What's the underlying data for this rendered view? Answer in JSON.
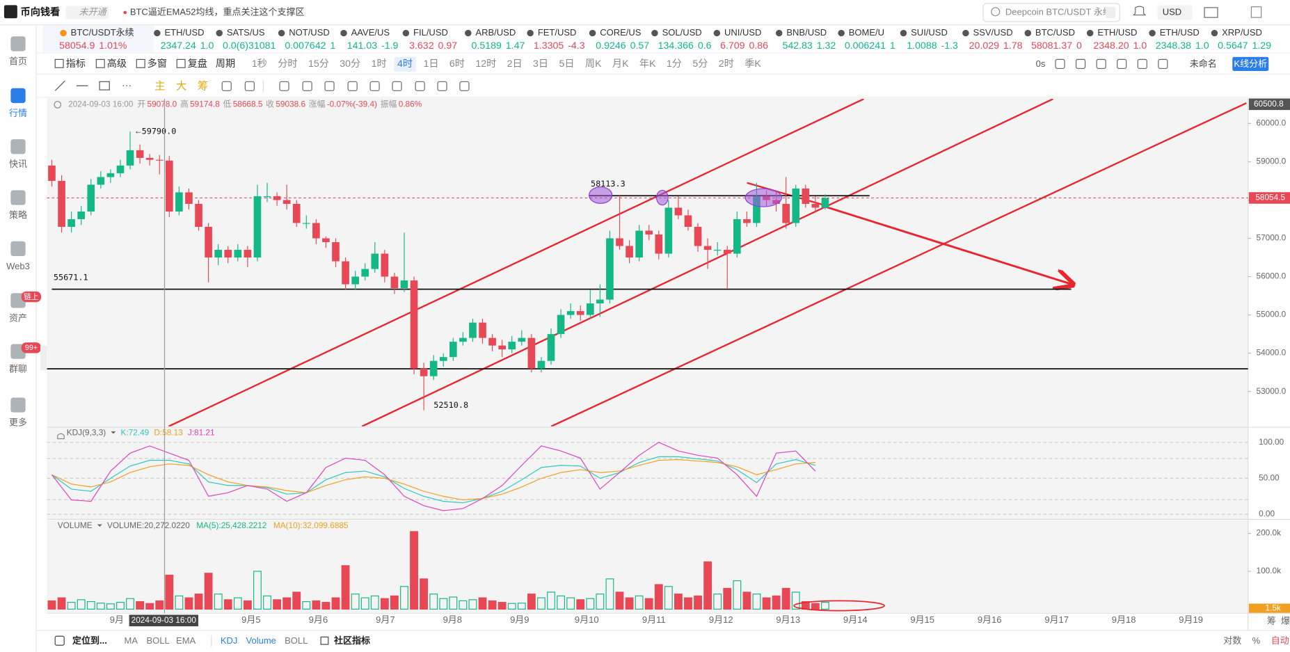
{
  "header": {
    "logo": "币向钱看",
    "badge": "未开通",
    "news": "BTC逼近EMA52均线，重点关注这个支撑区",
    "search": "Deepcoin BTC/USDT 永续",
    "currency": "USD"
  },
  "sidebar": {
    "items": [
      "首页",
      "行情",
      "快讯",
      "策略",
      "Web3",
      "资产",
      "群聊",
      "更多"
    ],
    "active": 1,
    "badges": [
      {
        "text": "链上",
        "item": 5
      },
      {
        "text": "99+",
        "item": 6
      }
    ]
  },
  "tickers": [
    {
      "name": "BTC/USDT永续",
      "price": "58054.9",
      "change": "1.01%",
      "color": "#e84856"
    },
    {
      "name": "ETH/USD",
      "price": "2347.24",
      "change": "1.0",
      "color": "#13b886"
    },
    {
      "name": "SATS/US",
      "price": "0.0(6)31081",
      "change": "",
      "color": "#13b886"
    },
    {
      "name": "NOT/USD",
      "price": "0.007642",
      "change": "1",
      "color": "#13b886"
    },
    {
      "name": "AAVE/US",
      "price": "141.03",
      "change": "-1.9",
      "color": "#13b886"
    },
    {
      "name": "FIL/USD",
      "price": "3.632",
      "change": "0.97",
      "color": "#e84856"
    },
    {
      "name": "ARB/USD",
      "price": "0.5189",
      "change": "1.47",
      "color": "#13b886"
    },
    {
      "name": "FET/USD",
      "price": "1.3305",
      "change": "-4.3",
      "color": "#e84856"
    },
    {
      "name": "CORE/US",
      "price": "0.9246",
      "change": "0.57",
      "color": "#13b886"
    },
    {
      "name": "SOL/USD",
      "price": "134.366",
      "change": "0.6",
      "color": "#13b886"
    },
    {
      "name": "UNI/USD",
      "price": "6.709",
      "change": "0.86",
      "color": "#e84856"
    },
    {
      "name": "BNB/USD",
      "price": "542.83",
      "change": "1.32",
      "color": "#13b886"
    },
    {
      "name": "BOME/U",
      "price": "0.006241",
      "change": "1",
      "color": "#13b886"
    },
    {
      "name": "SUI/USD",
      "price": "1.0088",
      "change": "-1.3",
      "color": "#13b886"
    },
    {
      "name": "SSV/USD",
      "price": "20.029",
      "change": "1.78",
      "color": "#e84856"
    },
    {
      "name": "BTC/USD",
      "price": "58081.37",
      "change": "0",
      "color": "#e84856"
    },
    {
      "name": "ETH/USD",
      "price": "2348.20",
      "change": "1.0",
      "color": "#e84856"
    },
    {
      "name": "ETH/USD",
      "price": "2348.38",
      "change": "1.0",
      "color": "#13b886"
    },
    {
      "name": "XRP/USD",
      "price": "0.5647",
      "change": "1.29",
      "color": "#13b886"
    }
  ],
  "toolbar": {
    "tools": [
      "指标",
      "高级",
      "多窗",
      "复盘",
      "周期"
    ],
    "periods": [
      "1秒",
      "分时",
      "15分",
      "30分",
      "1时",
      "4时",
      "1日",
      "6时",
      "12时",
      "2日",
      "3日",
      "5日",
      "周K",
      "月K",
      "年K",
      "1分",
      "5分",
      "2时",
      "季K"
    ],
    "active_period": 5,
    "right": [
      "0s",
      "未命名",
      "K线分析"
    ]
  },
  "drawing_tools": [
    "主",
    "大",
    "筹"
  ],
  "bottom_bar": {
    "locate": "定位到...",
    "main_indicators": [
      "MA",
      "BOLL",
      "EMA"
    ],
    "sub_indicators": [
      "KDJ",
      "Volume",
      "BOLL"
    ],
    "community": "社区指标",
    "right": [
      "对数",
      "%",
      "自动"
    ],
    "edge": [
      "筹",
      "爆"
    ]
  },
  "chart_data": {
    "type": "candlestick",
    "info": {
      "time": "2024-09-03 16:00",
      "items": [
        {
          "label": "开",
          "value": "59078.0"
        },
        {
          "label": "高",
          "value": "59174.8"
        },
        {
          "label": "低",
          "value": "58668.5"
        },
        {
          "label": "收",
          "value": "59038.6"
        },
        {
          "label": "涨幅",
          "value": "-0.07%(-39.4)"
        },
        {
          "label": "振幅",
          "value": "0.86%"
        }
      ]
    },
    "up_color": "#13b886",
    "down_color": "#e84856",
    "ylim": [
      52090,
      60640
    ],
    "yticks": [
      {
        "value": 53000,
        "label": "53000.0"
      },
      {
        "value": 54000,
        "label": "54000.0"
      },
      {
        "value": 55000,
        "label": "55000.0"
      },
      {
        "value": 56000,
        "label": "56000.0"
      },
      {
        "value": 57000,
        "label": "57000.0"
      },
      {
        "value": 58000,
        "label": "58000.0"
      },
      {
        "value": 59000,
        "label": "59000.0"
      },
      {
        "value": 60000,
        "label": "60000.0"
      }
    ],
    "last_price": 58054.5,
    "top_price": 60500.8,
    "annotations": {
      "high": {
        "value": 59790,
        "label": "59790.0"
      },
      "low": 52510.8,
      "resistance": 58113.3,
      "support": 55671.1
    },
    "categories": [
      "9月",
      null,
      "9月5",
      "9月6",
      "9月7",
      "9月8",
      "9月9",
      "9月10",
      "9月11",
      "9月12",
      "9月13",
      "9月14",
      "9月15",
      "9月16",
      "9月17",
      "9月18",
      "9月19"
    ],
    "candles": [
      [
        58900,
        59050,
        58350,
        58500
      ],
      [
        58500,
        58650,
        57150,
        57300
      ],
      [
        57300,
        57700,
        57150,
        57500
      ],
      [
        57500,
        57850,
        57350,
        57700
      ],
      [
        57700,
        58550,
        57600,
        58400
      ],
      [
        58400,
        58750,
        58300,
        58600
      ],
      [
        58600,
        58800,
        58450,
        58700
      ],
      [
        58700,
        59050,
        58600,
        58900
      ],
      [
        58900,
        59790,
        58800,
        59300
      ],
      [
        59300,
        59450,
        58950,
        59100
      ],
      [
        59100,
        59200,
        58900,
        59050
      ],
      [
        59050,
        59175,
        58670,
        59030
      ],
      [
        59030,
        59150,
        57550,
        57700
      ],
      [
        57700,
        58350,
        57600,
        58200
      ],
      [
        58200,
        58300,
        57750,
        57900
      ],
      [
        57900,
        58000,
        57200,
        57300
      ],
      [
        57300,
        57400,
        55850,
        56500
      ],
      [
        56500,
        56850,
        56300,
        56700
      ],
      [
        56700,
        56800,
        56350,
        56500
      ],
      [
        56500,
        56850,
        56400,
        56700
      ],
      [
        56700,
        56800,
        56250,
        56500
      ],
      [
        56500,
        58400,
        56400,
        58100
      ],
      [
        58100,
        58450,
        57950,
        58100
      ],
      [
        58100,
        58200,
        57850,
        58000
      ],
      [
        58000,
        58400,
        57750,
        57900
      ],
      [
        57900,
        58000,
        57300,
        57400
      ],
      [
        57400,
        57600,
        57250,
        57400
      ],
      [
        57400,
        57500,
        56850,
        57000
      ],
      [
        57000,
        57050,
        56750,
        56900
      ],
      [
        56900,
        57000,
        56250,
        56400
      ],
      [
        56400,
        56500,
        55650,
        55800
      ],
      [
        55800,
        56150,
        55650,
        56000
      ],
      [
        56000,
        56350,
        55900,
        56200
      ],
      [
        56200,
        56900,
        56100,
        56600
      ],
      [
        56600,
        56700,
        55850,
        56000
      ],
      [
        56000,
        56100,
        55550,
        55700
      ],
      [
        55700,
        57150,
        55600,
        55900
      ],
      [
        55900,
        56000,
        53450,
        53600
      ],
      [
        53600,
        53750,
        52510.8,
        53400
      ],
      [
        53400,
        53950,
        53300,
        53800
      ],
      [
        53800,
        54000,
        53650,
        53900
      ],
      [
        53900,
        54400,
        53800,
        54300
      ],
      [
        54300,
        54550,
        54200,
        54400
      ],
      [
        54400,
        54900,
        54300,
        54800
      ],
      [
        54800,
        54900,
        54250,
        54400
      ],
      [
        54400,
        54500,
        54050,
        54200
      ],
      [
        54200,
        54350,
        53900,
        54100
      ],
      [
        54100,
        54450,
        54000,
        54300
      ],
      [
        54300,
        54600,
        54200,
        54400
      ],
      [
        54400,
        54500,
        53500,
        53600
      ],
      [
        53600,
        53900,
        53500,
        53800
      ],
      [
        53800,
        54650,
        53700,
        54500
      ],
      [
        54500,
        55150,
        54400,
        55000
      ],
      [
        55000,
        55300,
        54900,
        55100
      ],
      [
        55100,
        55250,
        54850,
        55000
      ],
      [
        55000,
        55650,
        54900,
        55300
      ],
      [
        55300,
        55800,
        54950,
        55400
      ],
      [
        55400,
        57200,
        55300,
        57000
      ],
      [
        57000,
        58113.3,
        56700,
        56800
      ],
      [
        56800,
        56950,
        56350,
        56500
      ],
      [
        56500,
        57350,
        56400,
        57200
      ],
      [
        57200,
        57350,
        56950,
        57100
      ],
      [
        57100,
        57200,
        56450,
        56600
      ],
      [
        56600,
        58000,
        56500,
        57800
      ],
      [
        57800,
        58100,
        57500,
        57600
      ],
      [
        57600,
        57750,
        57200,
        57300
      ],
      [
        57300,
        57400,
        56650,
        56800
      ],
      [
        56800,
        57000,
        56200,
        56700
      ],
      [
        56700,
        56900,
        56550,
        56700
      ],
      [
        56700,
        56800,
        55700,
        56600
      ],
      [
        56600,
        57700,
        56500,
        57500
      ],
      [
        57500,
        57700,
        57300,
        57400
      ],
      [
        57400,
        58450,
        57300,
        58100
      ],
      [
        58100,
        58250,
        57850,
        58000
      ],
      [
        58000,
        58250,
        57700,
        57900
      ],
      [
        57900,
        58600,
        57250,
        57400
      ],
      [
        57400,
        58400,
        57300,
        58300
      ],
      [
        58300,
        58400,
        57800,
        57900
      ],
      [
        57900,
        58100,
        57700,
        57800
      ],
      [
        57800,
        58150,
        57750,
        58050
      ]
    ],
    "kdj": {
      "label": "KDJ(9,3,3)",
      "readouts": [
        "K:72.49",
        "D:58.13",
        "J:81.21"
      ],
      "ylim": [
        -7,
        121
      ],
      "yticks": [
        {
          "value": 0,
          "label": "0.00"
        },
        {
          "value": 50,
          "label": "50.00"
        },
        {
          "value": 100,
          "label": "100.00"
        }
      ],
      "series": [
        {
          "color": "#2ec7c0",
          "values": [
            55,
            35,
            32,
            50,
            67,
            75,
            75,
            70,
            45,
            40,
            40,
            37,
            28,
            30,
            48,
            58,
            60,
            52,
            36,
            25,
            18,
            16,
            22,
            32,
            48,
            65,
            68,
            67,
            50,
            58,
            72,
            80,
            80,
            77,
            74,
            62,
            44,
            70,
            76,
            68
          ]
        },
        {
          "color": "#f0a020",
          "values": [
            55,
            42,
            38,
            45,
            58,
            66,
            70,
            68,
            55,
            45,
            40,
            38,
            33,
            30,
            40,
            48,
            52,
            50,
            42,
            32,
            25,
            20,
            22,
            28,
            38,
            50,
            58,
            62,
            58,
            60,
            68,
            75,
            76,
            74,
            72,
            66,
            55,
            62,
            70,
            72
          ]
        },
        {
          "color": "#e040c0",
          "values": [
            55,
            20,
            18,
            60,
            85,
            95,
            85,
            75,
            25,
            30,
            40,
            35,
            18,
            30,
            65,
            78,
            75,
            55,
            25,
            12,
            5,
            8,
            22,
            40,
            68,
            95,
            88,
            78,
            35,
            58,
            82,
            100,
            88,
            82,
            78,
            55,
            25,
            85,
            88,
            60
          ]
        }
      ]
    },
    "volume": {
      "label": "VOLUME",
      "readouts": [
        "VOLUME:20,272.0220",
        "MA(5):25,428.2212",
        "MA(10):32,099.6885"
      ],
      "ylim": [
        -4000,
        235000
      ],
      "yticks": [
        {
          "value": 100000,
          "label": "100.0k"
        },
        {
          "value": 200000,
          "label": "200.0k"
        }
      ],
      "last": {
        "value": 1500,
        "label": "1.5k"
      },
      "values": [
        22000,
        30000,
        18000,
        25000,
        20000,
        16000,
        14000,
        18000,
        28000,
        20000,
        15000,
        22000,
        90000,
        35000,
        30000,
        40000,
        95000,
        40000,
        25000,
        30000,
        22000,
        100000,
        35000,
        25000,
        30000,
        45000,
        20000,
        22000,
        18000,
        30000,
        115000,
        40000,
        30000,
        35000,
        28000,
        35000,
        60000,
        205000,
        80000,
        40000,
        28000,
        32000,
        22000,
        25000,
        30000,
        22000,
        18000,
        15000,
        16000,
        40000,
        30000,
        45000,
        35000,
        30000,
        25000,
        28000,
        40000,
        80000,
        45000,
        30000,
        35000,
        28000,
        65000,
        60000,
        40000,
        30000,
        35000,
        125000,
        40000,
        55000,
        75000,
        45000,
        40000,
        30000,
        35000,
        55000,
        45000,
        20000,
        15000,
        18000
      ]
    }
  }
}
